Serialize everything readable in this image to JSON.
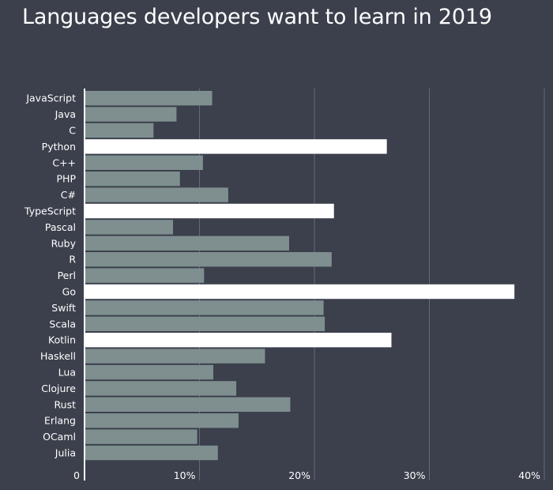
{
  "chart_data": {
    "type": "bar",
    "orientation": "horizontal",
    "title": "Languages developers want to learn in 2019",
    "xlabel": "",
    "ylabel": "",
    "xlim": [
      0,
      40
    ],
    "grid": "vertical",
    "x_ticks": [
      {
        "value": 0,
        "label": "0"
      },
      {
        "value": 10,
        "label": "10%"
      },
      {
        "value": 20,
        "label": "20%"
      },
      {
        "value": 30,
        "label": "30%"
      },
      {
        "value": 40,
        "label": "40%"
      }
    ],
    "categories": [
      "JavaScript",
      "Java",
      "C",
      "Python",
      "C++",
      "PHP",
      "C#",
      "TypeScript",
      "Pascal",
      "Ruby",
      "R",
      "Perl",
      "Go",
      "Swift",
      "Scala",
      "Kotlin",
      "Haskell",
      "Lua",
      "Clojure",
      "Rust",
      "Erlang",
      "OCaml",
      "Julia"
    ],
    "values": [
      11.1,
      8.0,
      6.0,
      26.3,
      10.3,
      8.3,
      12.5,
      21.7,
      7.7,
      17.8,
      21.5,
      10.4,
      37.4,
      20.8,
      20.9,
      26.7,
      15.7,
      11.2,
      13.2,
      17.9,
      13.4,
      9.8,
      11.6
    ],
    "highlighted": [
      "Python",
      "TypeScript",
      "Go",
      "Kotlin"
    ],
    "colors": {
      "background": "#3b404c",
      "bar": "#7f8f90",
      "highlight": "#ffffff",
      "grid": "#646a76",
      "axis": "#ffffff",
      "text": "#ffffff"
    }
  }
}
